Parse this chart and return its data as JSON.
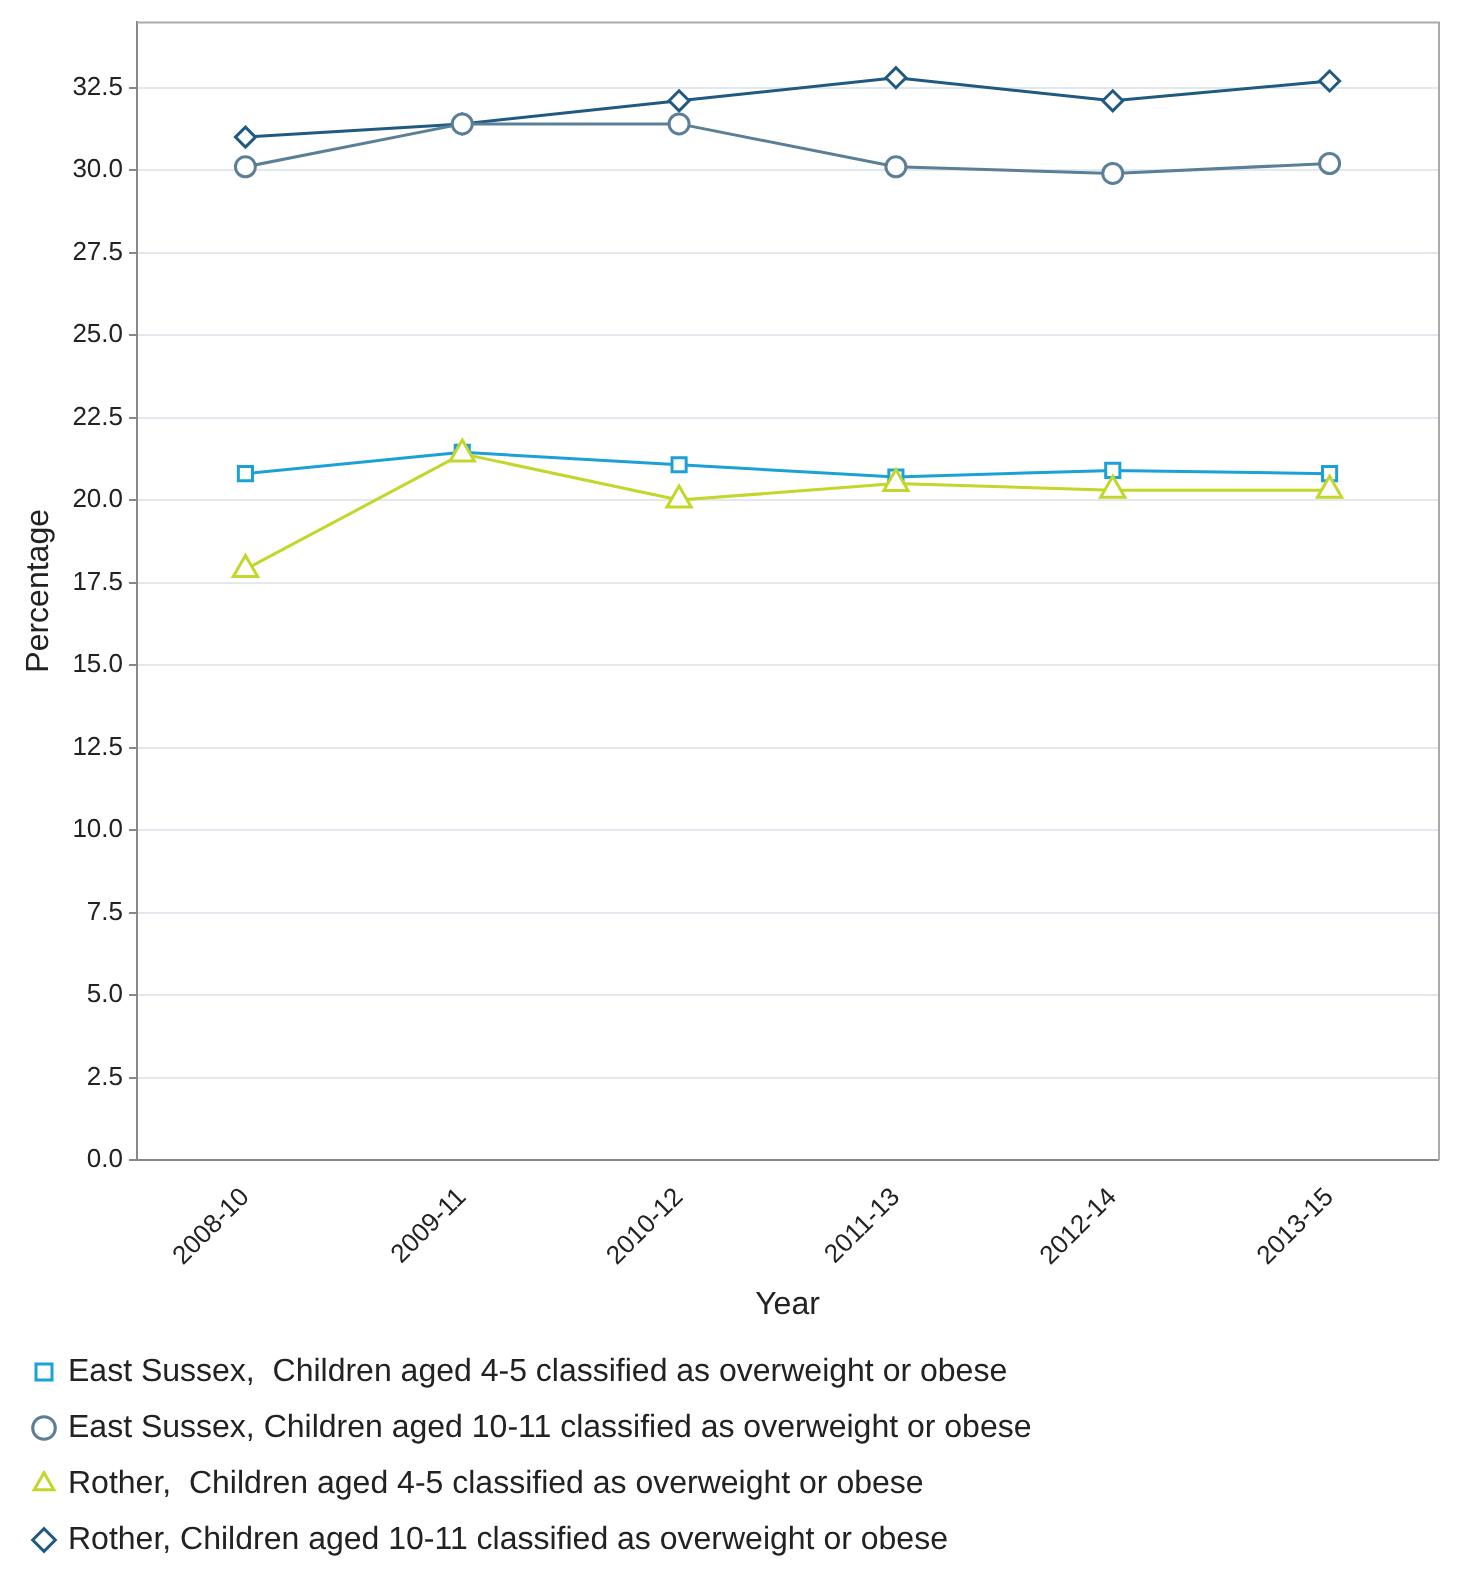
{
  "chart_data": {
    "type": "line",
    "xlabel": "Year",
    "ylabel": "Percentage",
    "categories": [
      "2008-10",
      "2009-11",
      "2010-12",
      "2011-13",
      "2012-14",
      "2013-15"
    ],
    "series": [
      {
        "name": "East Sussex,  Children aged 4-5 classified as overweight or obese",
        "color": "#1ba1d8",
        "marker": "square",
        "values": [
          20.8,
          21.45,
          21.07,
          20.7,
          20.9,
          20.8
        ]
      },
      {
        "name": "East Sussex, Children aged 10-11 classified as overweight or obese",
        "color": "#5a7f96",
        "marker": "circle",
        "values": [
          30.1,
          31.4,
          31.4,
          30.1,
          29.9,
          30.2
        ]
      },
      {
        "name": "Rother,  Children aged 4-5 classified as overweight or obese",
        "color": "#c3d62a",
        "marker": "triangle",
        "values": [
          17.9,
          21.4,
          20.0,
          20.5,
          20.3,
          20.3
        ]
      },
      {
        "name": "Rother, Children aged 10-11 classified as overweight or obese",
        "color": "#215a80",
        "marker": "diamond",
        "values": [
          31.0,
          31.4,
          32.1,
          32.8,
          32.1,
          32.7
        ]
      }
    ],
    "ylim": [
      0,
      34.5
    ],
    "yticks": [
      {
        "value": 0,
        "label": "0.0"
      },
      {
        "value": 2.5,
        "label": "2.5"
      },
      {
        "value": 5,
        "label": "5.0"
      },
      {
        "value": 7.5,
        "label": "7.5"
      },
      {
        "value": 10,
        "label": "10.0"
      },
      {
        "value": 12.5,
        "label": "12.5"
      },
      {
        "value": 15,
        "label": "15.0"
      },
      {
        "value": 17.5,
        "label": "17.5"
      },
      {
        "value": 20,
        "label": "20.0"
      },
      {
        "value": 22.5,
        "label": "22.5"
      },
      {
        "value": 25,
        "label": "25.0"
      },
      {
        "value": 27.5,
        "label": "27.5"
      },
      {
        "value": 30,
        "label": "30.0"
      },
      {
        "value": 32.5,
        "label": "32.5"
      }
    ],
    "grid": "y",
    "legend": "bottom"
  }
}
